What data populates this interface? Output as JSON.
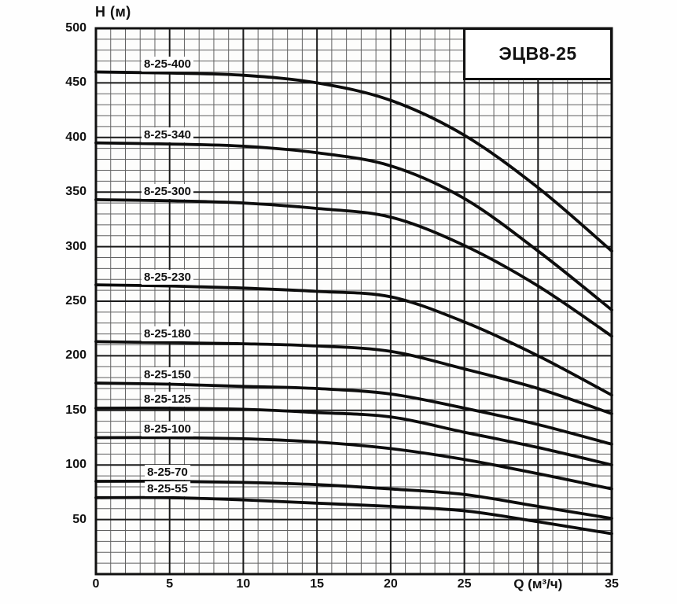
{
  "chart_data": {
    "type": "line",
    "title": "ЭЦВ8-25",
    "ylabel": "H (м)",
    "xlabel": "Q (м³/ч)",
    "xlim": [
      0,
      35
    ],
    "ylim": [
      0,
      500
    ],
    "x_ticks": [
      0,
      5,
      10,
      15,
      20,
      25,
      35
    ],
    "xlabel_replaces_tick": 30,
    "y_ticks": [
      50,
      100,
      150,
      200,
      250,
      300,
      350,
      400,
      450,
      500
    ],
    "x_minor_step": 1,
    "y_minor_step": 10,
    "x_major_step": 5,
    "y_major_step": 50,
    "grid": "major+minor",
    "legend": "labels-above-curves",
    "x": [
      0,
      5,
      10,
      15,
      20,
      25,
      30,
      35
    ],
    "series": [
      {
        "name": "8-25-400",
        "values": [
          460,
          459,
          457,
          450,
          434,
          402,
          354,
          296
        ]
      },
      {
        "name": "8-25-340",
        "values": [
          395,
          394,
          392,
          386,
          374,
          344,
          296,
          242
        ]
      },
      {
        "name": "8-25-300",
        "values": [
          343,
          342,
          340,
          335,
          327,
          301,
          264,
          218
        ]
      },
      {
        "name": "8-25-230",
        "values": [
          265,
          264,
          262,
          259,
          254,
          231,
          200,
          164
        ]
      },
      {
        "name": "8-25-180",
        "values": [
          213,
          212,
          211,
          209,
          204,
          188,
          170,
          147
        ]
      },
      {
        "name": "8-25-150",
        "values": [
          175,
          174,
          172,
          170,
          165,
          152,
          137,
          119
        ]
      },
      {
        "name": "8-25-125",
        "values": [
          152,
          152,
          151,
          148,
          144,
          130,
          116,
          100
        ]
      },
      {
        "name": "8-25-100",
        "values": [
          125,
          125,
          124,
          121,
          115,
          105,
          92,
          78
        ]
      },
      {
        "name": "8-25-70",
        "values": [
          85,
          85,
          84,
          82,
          78,
          73,
          62,
          51
        ]
      },
      {
        "name": "8-25-55",
        "values": [
          70,
          70,
          68,
          65,
          62,
          58,
          48,
          37
        ]
      }
    ],
    "colors": {
      "curve": "#0d0d0d",
      "grid_minor": "#606060",
      "grid_major": "#1a1a1a",
      "frame": "#111111",
      "text": "#111111",
      "plot_bg": "#fdfdfc",
      "title_box_bg": "#ffffff",
      "title_box_border": "#111111"
    }
  }
}
